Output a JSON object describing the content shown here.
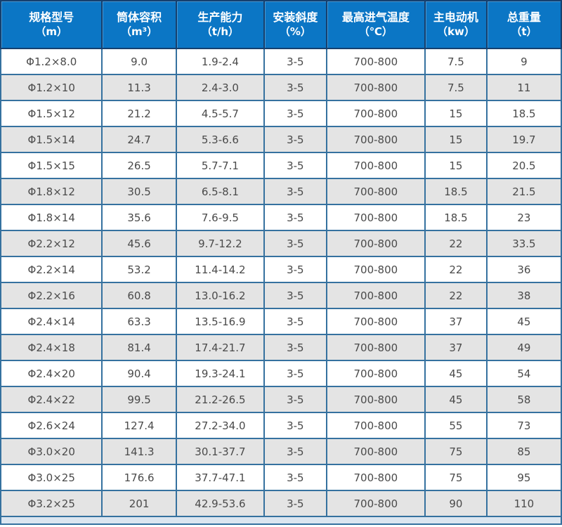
{
  "chart_data": {
    "type": "table",
    "title": "",
    "columns": [
      {
        "label": "规格型号",
        "unit": "（m）"
      },
      {
        "label": "筒体容积",
        "unit": "（m³）"
      },
      {
        "label": "生产能力",
        "unit": "（t/h）"
      },
      {
        "label": "安装斜度",
        "unit": "（%）"
      },
      {
        "label": "最高进气温度",
        "unit": "（℃）"
      },
      {
        "label": "主电动机",
        "unit": "（kw）"
      },
      {
        "label": "总重量",
        "unit": "（t）"
      }
    ],
    "rows": [
      [
        "Φ1.2×8.0",
        "9.0",
        "1.9-2.4",
        "3-5",
        "700-800",
        "7.5",
        "9"
      ],
      [
        "Φ1.2×10",
        "11.3",
        "2.4-3.0",
        "3-5",
        "700-800",
        "7.5",
        "11"
      ],
      [
        "Φ1.5×12",
        "21.2",
        "4.5-5.7",
        "3-5",
        "700-800",
        "15",
        "18.5"
      ],
      [
        "Φ1.5×14",
        "24.7",
        "5.3-6.6",
        "3-5",
        "700-800",
        "15",
        "19.7"
      ],
      [
        "Φ1.5×15",
        "26.5",
        "5.7-7.1",
        "3-5",
        "700-800",
        "15",
        "20.5"
      ],
      [
        "Φ1.8×12",
        "30.5",
        "6.5-8.1",
        "3-5",
        "700-800",
        "18.5",
        "21.5"
      ],
      [
        "Φ1.8×14",
        "35.6",
        "7.6-9.5",
        "3-5",
        "700-800",
        "18.5",
        "23"
      ],
      [
        "Φ2.2×12",
        "45.6",
        "9.7-12.2",
        "3-5",
        "700-800",
        "22",
        "33.5"
      ],
      [
        "Φ2.2×14",
        "53.2",
        "11.4-14.2",
        "3-5",
        "700-800",
        "22",
        "36"
      ],
      [
        "Φ2.2×16",
        "60.8",
        "13.0-16.2",
        "3-5",
        "700-800",
        "22",
        "38"
      ],
      [
        "Φ2.4×14",
        "63.3",
        "13.5-16.9",
        "3-5",
        "700-800",
        "37",
        "45"
      ],
      [
        "Φ2.4×18",
        "81.4",
        "17.4-21.7",
        "3-5",
        "700-800",
        "37",
        "49"
      ],
      [
        "Φ2.4×20",
        "90.4",
        "19.3-24.1",
        "3-5",
        "700-800",
        "45",
        "54"
      ],
      [
        "Φ2.4×22",
        "99.5",
        "21.2-26.5",
        "3-5",
        "700-800",
        "45",
        "58"
      ],
      [
        "Φ2.6×24",
        "127.4",
        "27.2-34.0",
        "3-5",
        "700-800",
        "55",
        "73"
      ],
      [
        "Φ3.0×20",
        "141.3",
        "30.1-37.7",
        "3-5",
        "700-800",
        "75",
        "85"
      ],
      [
        "Φ3.0×25",
        "176.6",
        "37.7-47.1",
        "3-5",
        "700-800",
        "75",
        "95"
      ],
      [
        "Φ3.2×25",
        "201",
        "42.9-53.6",
        "3-5",
        "700-800",
        "90",
        "110"
      ]
    ],
    "layout_hints": {
      "grid": true,
      "alternating_rows": true,
      "header_rows": 1
    }
  },
  "colors": {
    "header_bg": "#0b76c5",
    "header_border": "#16406e",
    "body_border": "#35719f",
    "row_alt": "#e4e4e4",
    "row_white": "#ffffff",
    "text": "#4a4a4a",
    "strip": "#dce6f0"
  }
}
